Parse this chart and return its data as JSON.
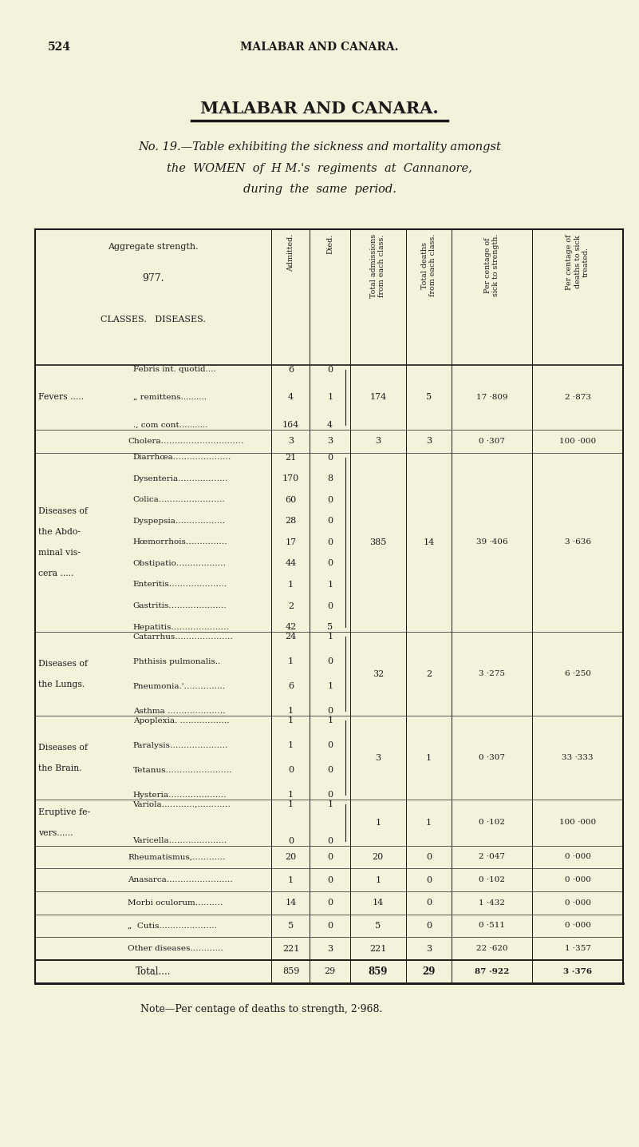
{
  "page_num": "524",
  "header_center": "MALABAR AND CANARA.",
  "title_bold": "MALABAR AND CANARA.",
  "subtitle_line1": "No. 19.—Table exhibiting the sickness and mortality amongst",
  "subtitle_line2": "the  WOMEN  of  H M.'s  regiments  at  Cannanore,",
  "subtitle_line3": "during  the  same  period.",
  "aggregate_strength": "977.",
  "col_headers": [
    "Admitted.",
    "Died.",
    "Total admissions\nfrom each class.",
    "Total deaths\nfrom each class.",
    "Per centage of\nsick to strength.",
    "Per centage of\ndeaths to sick\ntreated."
  ],
  "rows": [
    {
      "class": "Fevers .....",
      "diseases": [
        "Febris int. quotid....",
        "„ remittens..........",
        "., com cont..........."
      ],
      "admitted": [
        "6",
        "4",
        "164"
      ],
      "died": [
        "0",
        "1",
        "4"
      ],
      "total_adm": "174",
      "total_death": "5",
      "pct_sick": "17 ·809",
      "pct_death": "2 ·873",
      "bracket": true,
      "is_total": false
    },
    {
      "class": "",
      "diseases": [
        "Cholera…………………………"
      ],
      "admitted": [
        "3"
      ],
      "died": [
        "3"
      ],
      "total_adm": "3",
      "total_death": "3",
      "pct_sick": "0 ·307",
      "pct_death": "100 ·000",
      "bracket": false,
      "is_total": false
    },
    {
      "class": "Diseases of\nthe Abdo-\nminal vis-\ncera .....",
      "diseases": [
        "Diarrhœa…………………",
        "Dysenteria………………",
        "Colica……………………",
        "Dyspepsia………………",
        "Hœmorrhois……………",
        "Obstipatio………………",
        "Enteritis…………………",
        "Gastritis…………………",
        "Hepatitis…………………"
      ],
      "admitted": [
        "21",
        "170",
        "60",
        "28",
        "17",
        "44",
        "1",
        "2",
        "42"
      ],
      "died": [
        "0",
        "8",
        "0",
        "0",
        "0",
        "0",
        "1",
        "0",
        "5"
      ],
      "total_adm": "385",
      "total_death": "14",
      "pct_sick": "39 ·406",
      "pct_death": "3 ·636",
      "bracket": true,
      "is_total": false
    },
    {
      "class": "Diseases of\nthe Lungs.",
      "diseases": [
        "Catarrhus…………………",
        "Phthisis pulmonalis..",
        "Pneumonia.'……………",
        "Asthma …………………"
      ],
      "admitted": [
        "24",
        "1",
        "6",
        "1"
      ],
      "died": [
        "1",
        "0",
        "1",
        "0"
      ],
      "total_adm": "32",
      "total_death": "2",
      "pct_sick": "3 ·275",
      "pct_death": "6 ·250",
      "bracket": true,
      "is_total": false
    },
    {
      "class": "Diseases of\nthe Brain.",
      "diseases": [
        "Apoplexia. ………………",
        "Paralysis…………………",
        "Tetanus……………………",
        "Hysteria…………………"
      ],
      "admitted": [
        "1",
        "1",
        "0",
        "1"
      ],
      "died": [
        "1",
        "0",
        "0",
        "0"
      ],
      "total_adm": "3",
      "total_death": "1",
      "pct_sick": "0 ·307",
      "pct_death": "33 ·333",
      "bracket": true,
      "is_total": false
    },
    {
      "class": "Eruptive fe-\nvers......",
      "diseases": [
        "Variola…………,…………",
        "Varicella…………………"
      ],
      "admitted": [
        "1",
        "0"
      ],
      "died": [
        "1",
        "0"
      ],
      "total_adm": "1",
      "total_death": "1",
      "pct_sick": "0 ·102",
      "pct_death": "100 ·000",
      "bracket": true,
      "is_total": false
    },
    {
      "class": "",
      "diseases": [
        "Rheumatismus,…………"
      ],
      "admitted": [
        "20"
      ],
      "died": [
        "0"
      ],
      "total_adm": "20",
      "total_death": "0",
      "pct_sick": "2 ·047",
      "pct_death": "0 ·000",
      "bracket": false,
      "is_total": false
    },
    {
      "class": "",
      "diseases": [
        "Anasarca……………………"
      ],
      "admitted": [
        "1"
      ],
      "died": [
        "0"
      ],
      "total_adm": "1",
      "total_death": "0",
      "pct_sick": "0 ·102",
      "pct_death": "0 ·000",
      "bracket": false,
      "is_total": false
    },
    {
      "class": "",
      "diseases": [
        "Morbi oculorum………."
      ],
      "admitted": [
        "14"
      ],
      "died": [
        "0"
      ],
      "total_adm": "14",
      "total_death": "0",
      "pct_sick": "1 ·432",
      "pct_death": "0 ·000",
      "bracket": false,
      "is_total": false
    },
    {
      "class": "",
      "diseases": [
        "„  Cutis…………………"
      ],
      "admitted": [
        "5"
      ],
      "died": [
        "0"
      ],
      "total_adm": "5",
      "total_death": "0",
      "pct_sick": "0 ·511",
      "pct_death": "0 ·000",
      "bracket": false,
      "is_total": false
    },
    {
      "class": "",
      "diseases": [
        "Other diseases…………"
      ],
      "admitted": [
        "221"
      ],
      "died": [
        "3"
      ],
      "total_adm": "221",
      "total_death": "3",
      "pct_sick": "22 ·620",
      "pct_death": "1 ·357",
      "bracket": false,
      "is_total": false
    },
    {
      "class": "",
      "diseases": [
        "Total...."
      ],
      "admitted": [
        "859"
      ],
      "died": [
        "29"
      ],
      "total_adm": "859",
      "total_death": "29",
      "pct_sick": "87 ·922",
      "pct_death": "3 ·376",
      "bracket": false,
      "is_total": true
    }
  ],
  "note": "Note—Per centage of deaths to strength, 2·968.",
  "bg_color": "#f5f2dc",
  "text_color": "#1a1a1a",
  "line_color": "#1a1a1a"
}
